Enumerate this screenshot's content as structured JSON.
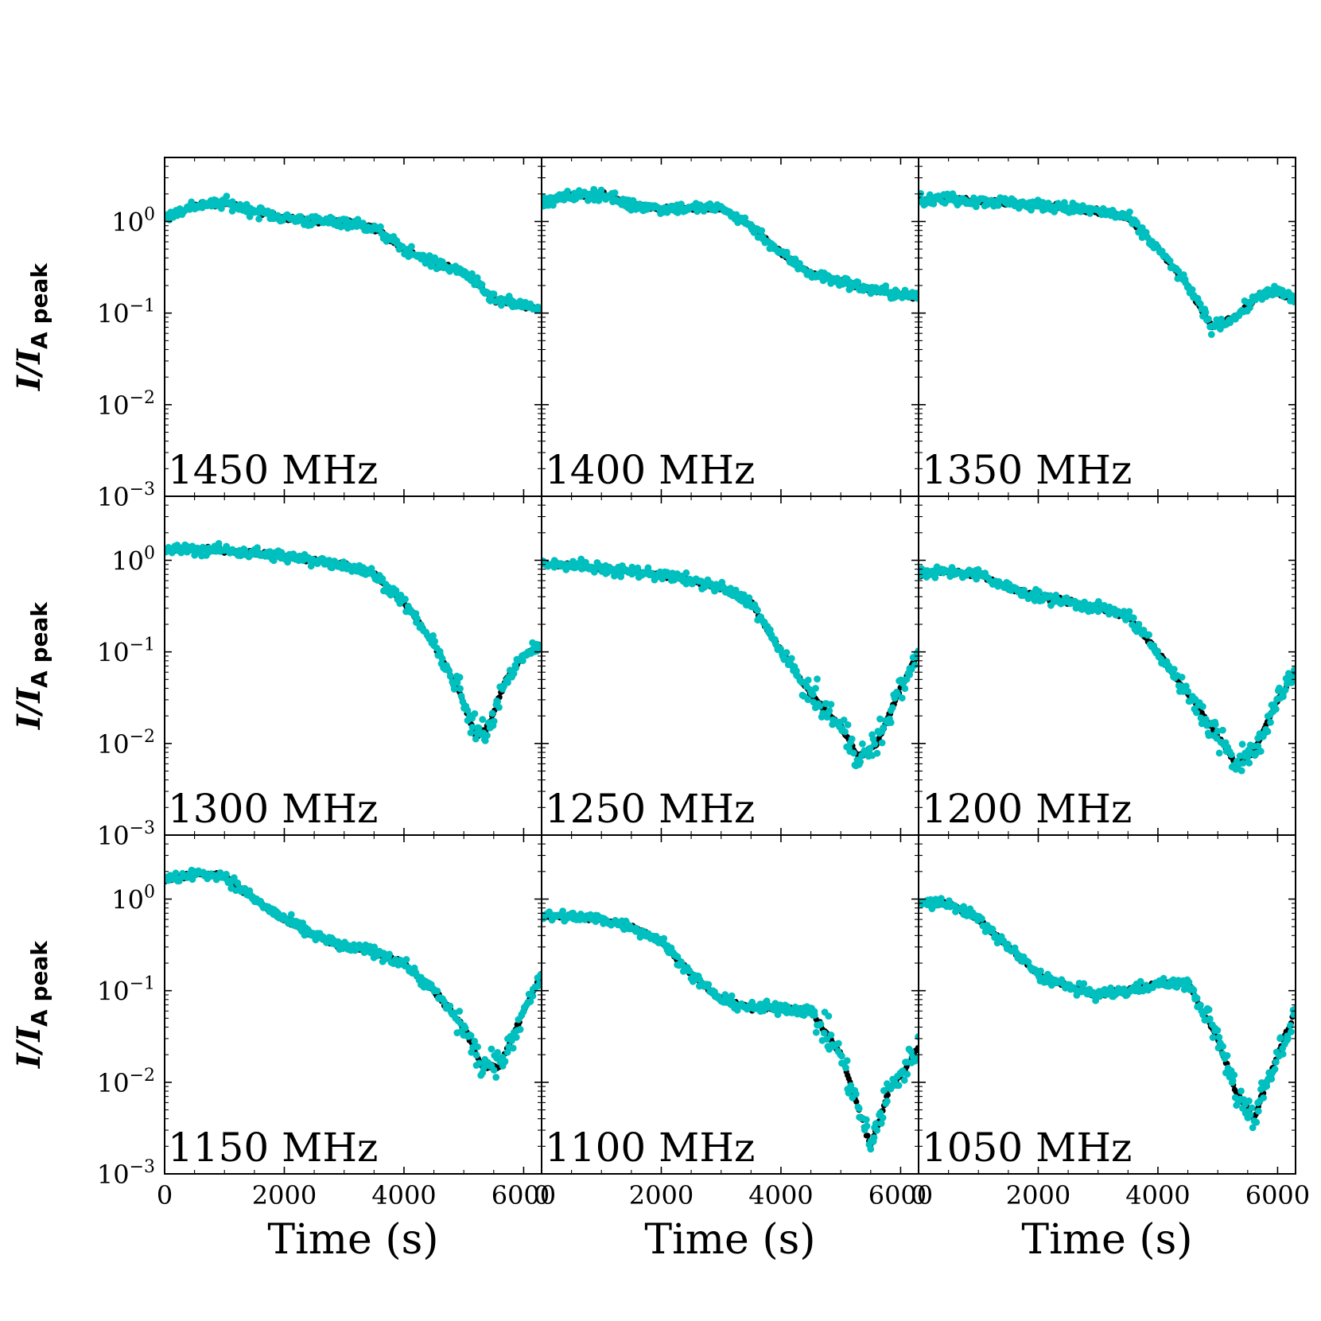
{
  "figure": {
    "ylabel_main": "I/I",
    "ylabel_sub": "A peak",
    "colors": {
      "model": "#000000",
      "data": "#00bfbf",
      "axes": "#000000"
    }
  },
  "chart_data": [
    {
      "type": "scatter",
      "panel": "1450 MHz",
      "xlabel": "Time (s)",
      "ylabel": "I/I_Apeak",
      "yscale": "log",
      "xlim": [
        0,
        6300
      ],
      "ylim": [
        0.001,
        5
      ],
      "xticks": [
        "0",
        "2000",
        "4000",
        "6000"
      ],
      "yticks": [
        "10^0",
        "10^-1",
        "10^-2",
        "10^-3"
      ],
      "series": [
        {
          "name": "model",
          "color": "#000000",
          "x": [
            0,
            500,
            1000,
            1500,
            2000,
            2500,
            3000,
            3500,
            4000,
            4500,
            5000,
            5500,
            6000,
            6300
          ],
          "y": [
            1.1,
            1.5,
            1.6,
            1.3,
            1.1,
            1.0,
            1.0,
            0.85,
            0.5,
            0.35,
            0.28,
            0.14,
            0.12,
            0.11
          ]
        },
        {
          "name": "data",
          "color": "#00bfbf",
          "x": [
            0,
            500,
            1000,
            1500,
            2000,
            2500,
            3000,
            3500,
            4000,
            4500,
            5000,
            5500,
            6000,
            6300
          ],
          "y": [
            1.1,
            1.5,
            1.6,
            1.3,
            1.1,
            1.0,
            1.0,
            0.85,
            0.5,
            0.35,
            0.28,
            0.14,
            0.12,
            0.11
          ]
        }
      ]
    },
    {
      "type": "scatter",
      "panel": "1400 MHz",
      "xlabel": "Time (s)",
      "ylabel": "I/I_Apeak",
      "yscale": "log",
      "xlim": [
        0,
        6300
      ],
      "ylim": [
        0.001,
        5
      ],
      "xticks": [
        "0",
        "2000",
        "4000",
        "6000"
      ],
      "yticks": [
        "10^0",
        "10^-1",
        "10^-2",
        "10^-3"
      ],
      "series": [
        {
          "name": "model",
          "color": "#000000",
          "x": [
            0,
            500,
            1000,
            1500,
            2000,
            2500,
            3000,
            3500,
            4000,
            4500,
            5000,
            5500,
            6000,
            6300
          ],
          "y": [
            1.6,
            1.9,
            2.0,
            1.5,
            1.4,
            1.4,
            1.4,
            0.9,
            0.45,
            0.27,
            0.22,
            0.18,
            0.16,
            0.15
          ]
        },
        {
          "name": "data",
          "color": "#00bfbf",
          "x": [
            0,
            500,
            1000,
            1500,
            2000,
            2500,
            3000,
            3500,
            4000,
            4500,
            5000,
            5500,
            6000,
            6300
          ],
          "y": [
            1.6,
            1.9,
            2.0,
            1.5,
            1.4,
            1.4,
            1.4,
            0.9,
            0.45,
            0.27,
            0.22,
            0.18,
            0.16,
            0.15
          ]
        }
      ]
    },
    {
      "type": "scatter",
      "panel": "1350 MHz",
      "xlabel": "Time (s)",
      "ylabel": "I/I_Apeak",
      "yscale": "log",
      "xlim": [
        0,
        6300
      ],
      "ylim": [
        0.001,
        5
      ],
      "xticks": [
        "0",
        "2000",
        "4000",
        "6000"
      ],
      "yticks": [
        "10^0",
        "10^-1",
        "10^-2",
        "10^-3"
      ],
      "series": [
        {
          "name": "model",
          "color": "#000000",
          "x": [
            0,
            500,
            1000,
            1500,
            2000,
            2500,
            3000,
            3500,
            4000,
            4500,
            4900,
            5300,
            5700,
            6000,
            6300
          ],
          "y": [
            1.7,
            1.8,
            1.7,
            1.6,
            1.5,
            1.4,
            1.3,
            1.1,
            0.5,
            0.2,
            0.07,
            0.09,
            0.16,
            0.17,
            0.14
          ]
        },
        {
          "name": "data",
          "color": "#00bfbf",
          "x": [
            0,
            500,
            1000,
            1500,
            2000,
            2500,
            3000,
            3500,
            4000,
            4500,
            4900,
            5300,
            5700,
            6000,
            6300
          ],
          "y": [
            1.7,
            1.8,
            1.7,
            1.6,
            1.5,
            1.4,
            1.3,
            1.1,
            0.5,
            0.2,
            0.07,
            0.09,
            0.16,
            0.17,
            0.14
          ]
        }
      ]
    },
    {
      "type": "scatter",
      "panel": "1300 MHz",
      "xlabel": "Time (s)",
      "ylabel": "I/I_Apeak",
      "yscale": "log",
      "xlim": [
        0,
        6300
      ],
      "ylim": [
        0.001,
        5
      ],
      "xticks": [
        "0",
        "2000",
        "4000",
        "6000"
      ],
      "yticks": [
        "10^0",
        "10^-1",
        "10^-2",
        "10^-3"
      ],
      "series": [
        {
          "name": "model",
          "color": "#000000",
          "x": [
            0,
            500,
            1000,
            1500,
            2000,
            2500,
            3000,
            3500,
            4000,
            4500,
            4900,
            5200,
            5400,
            5700,
            6000,
            6300
          ],
          "y": [
            1.3,
            1.3,
            1.3,
            1.2,
            1.1,
            1.0,
            0.9,
            0.7,
            0.35,
            0.12,
            0.04,
            0.012,
            0.015,
            0.05,
            0.09,
            0.12
          ]
        },
        {
          "name": "data",
          "color": "#00bfbf",
          "x": [
            0,
            500,
            1000,
            1500,
            2000,
            2500,
            3000,
            3500,
            4000,
            4500,
            4900,
            5200,
            5400,
            5700,
            6000,
            6300
          ],
          "y": [
            1.3,
            1.3,
            1.3,
            1.2,
            1.1,
            1.0,
            0.9,
            0.7,
            0.35,
            0.12,
            0.04,
            0.012,
            0.015,
            0.05,
            0.09,
            0.12
          ]
        }
      ]
    },
    {
      "type": "scatter",
      "panel": "1250 MHz",
      "xlabel": "Time (s)",
      "ylabel": "I/I_Apeak",
      "yscale": "log",
      "xlim": [
        0,
        6300
      ],
      "ylim": [
        0.001,
        5
      ],
      "xticks": [
        "0",
        "2000",
        "4000",
        "6000"
      ],
      "yticks": [
        "10^0",
        "10^-1",
        "10^-2",
        "10^-3"
      ],
      "series": [
        {
          "name": "model",
          "color": "#000000",
          "x": [
            0,
            500,
            1000,
            1500,
            2000,
            2500,
            3000,
            3500,
            4000,
            4500,
            5000,
            5300,
            5600,
            6000,
            6300
          ],
          "y": [
            0.9,
            0.9,
            0.8,
            0.75,
            0.7,
            0.6,
            0.5,
            0.35,
            0.1,
            0.035,
            0.015,
            0.007,
            0.01,
            0.04,
            0.1
          ]
        },
        {
          "name": "data",
          "color": "#00bfbf",
          "x": [
            0,
            500,
            1000,
            1500,
            2000,
            2500,
            3000,
            3500,
            4000,
            4500,
            5000,
            5300,
            5600,
            6000,
            6300
          ],
          "y": [
            0.9,
            0.9,
            0.8,
            0.75,
            0.7,
            0.6,
            0.5,
            0.35,
            0.1,
            0.035,
            0.015,
            0.007,
            0.01,
            0.04,
            0.1
          ]
        }
      ]
    },
    {
      "type": "scatter",
      "panel": "1200 MHz",
      "xlabel": "Time (s)",
      "ylabel": "I/I_Apeak",
      "yscale": "log",
      "xlim": [
        0,
        6300
      ],
      "ylim": [
        0.001,
        5
      ],
      "xticks": [
        "0",
        "2000",
        "4000",
        "6000"
      ],
      "yticks": [
        "10^0",
        "10^-1",
        "10^-2",
        "10^-3"
      ],
      "series": [
        {
          "name": "model",
          "color": "#000000",
          "x": [
            0,
            500,
            1000,
            1500,
            2000,
            2500,
            3000,
            3500,
            4000,
            4500,
            5000,
            5300,
            5600,
            6000,
            6300
          ],
          "y": [
            0.7,
            0.75,
            0.7,
            0.5,
            0.4,
            0.35,
            0.3,
            0.25,
            0.1,
            0.035,
            0.012,
            0.006,
            0.008,
            0.03,
            0.06
          ]
        },
        {
          "name": "data",
          "color": "#00bfbf",
          "x": [
            0,
            500,
            1000,
            1500,
            2000,
            2500,
            3000,
            3500,
            4000,
            4500,
            5000,
            5300,
            5600,
            6000,
            6300
          ],
          "y": [
            0.7,
            0.75,
            0.7,
            0.5,
            0.4,
            0.35,
            0.3,
            0.25,
            0.1,
            0.035,
            0.012,
            0.006,
            0.008,
            0.03,
            0.06
          ]
        }
      ]
    },
    {
      "type": "scatter",
      "panel": "1150 MHz",
      "xlabel": "Time (s)",
      "ylabel": "I/I_Apeak",
      "yscale": "log",
      "xlim": [
        0,
        6300
      ],
      "ylim": [
        0.001,
        5
      ],
      "xticks": [
        "0",
        "2000",
        "4000",
        "6000"
      ],
      "yticks": [
        "10^0",
        "10^-1",
        "10^-2",
        "10^-3"
      ],
      "series": [
        {
          "name": "model",
          "color": "#000000",
          "x": [
            0,
            500,
            1000,
            1500,
            2000,
            2500,
            3000,
            3500,
            4000,
            4500,
            5000,
            5300,
            5600,
            6000,
            6300
          ],
          "y": [
            1.6,
            1.9,
            1.8,
            1.0,
            0.6,
            0.4,
            0.3,
            0.27,
            0.2,
            0.1,
            0.04,
            0.015,
            0.015,
            0.06,
            0.15
          ]
        },
        {
          "name": "data",
          "color": "#00bfbf",
          "x": [
            0,
            500,
            1000,
            1500,
            2000,
            2500,
            3000,
            3500,
            4000,
            4500,
            5000,
            5300,
            5600,
            6000,
            6300
          ],
          "y": [
            1.6,
            1.9,
            1.8,
            1.0,
            0.6,
            0.4,
            0.3,
            0.27,
            0.2,
            0.1,
            0.04,
            0.015,
            0.015,
            0.06,
            0.15
          ]
        }
      ]
    },
    {
      "type": "scatter",
      "panel": "1100 MHz",
      "xlabel": "Time (s)",
      "ylabel": "I/I_Apeak",
      "yscale": "log",
      "xlim": [
        0,
        6300
      ],
      "ylim": [
        0.001,
        5
      ],
      "xticks": [
        "0",
        "2000",
        "4000",
        "6000"
      ],
      "yticks": [
        "10^0",
        "10^-1",
        "10^-2",
        "10^-3"
      ],
      "series": [
        {
          "name": "model",
          "color": "#000000",
          "x": [
            0,
            500,
            1000,
            1500,
            2000,
            2500,
            3000,
            3500,
            4000,
            4500,
            5000,
            5300,
            5500,
            5800,
            6100,
            6300
          ],
          "y": [
            0.65,
            0.65,
            0.6,
            0.5,
            0.35,
            0.15,
            0.08,
            0.065,
            0.065,
            0.06,
            0.02,
            0.005,
            0.002,
            0.008,
            0.015,
            0.025
          ]
        },
        {
          "name": "data",
          "color": "#00bfbf",
          "x": [
            0,
            500,
            1000,
            1500,
            2000,
            2500,
            3000,
            3500,
            4000,
            4500,
            5000,
            5300,
            5500,
            5800,
            6100,
            6300
          ],
          "y": [
            0.65,
            0.65,
            0.6,
            0.5,
            0.35,
            0.15,
            0.08,
            0.065,
            0.065,
            0.06,
            0.02,
            0.005,
            0.002,
            0.008,
            0.015,
            0.025
          ]
        }
      ]
    },
    {
      "type": "scatter",
      "panel": "1050 MHz",
      "xlabel": "Time (s)",
      "ylabel": "I/I_Apeak",
      "yscale": "log",
      "xlim": [
        0,
        6300
      ],
      "ylim": [
        0.001,
        5
      ],
      "xticks": [
        "0",
        "2000",
        "4000",
        "6000"
      ],
      "yticks": [
        "10^0",
        "10^-1",
        "10^-2",
        "10^-3"
      ],
      "series": [
        {
          "name": "model",
          "color": "#000000",
          "x": [
            0,
            500,
            1000,
            1500,
            2000,
            2500,
            3000,
            3500,
            4000,
            4500,
            5000,
            5300,
            5600,
            6000,
            6300
          ],
          "y": [
            0.9,
            0.9,
            0.6,
            0.3,
            0.15,
            0.11,
            0.09,
            0.1,
            0.12,
            0.12,
            0.03,
            0.008,
            0.004,
            0.02,
            0.06
          ]
        },
        {
          "name": "data",
          "color": "#00bfbf",
          "x": [
            0,
            500,
            1000,
            1500,
            2000,
            2500,
            3000,
            3500,
            4000,
            4500,
            5000,
            5300,
            5600,
            6000,
            6300
          ],
          "y": [
            0.9,
            0.9,
            0.6,
            0.3,
            0.15,
            0.11,
            0.09,
            0.1,
            0.12,
            0.12,
            0.03,
            0.008,
            0.004,
            0.02,
            0.06
          ]
        }
      ]
    }
  ]
}
